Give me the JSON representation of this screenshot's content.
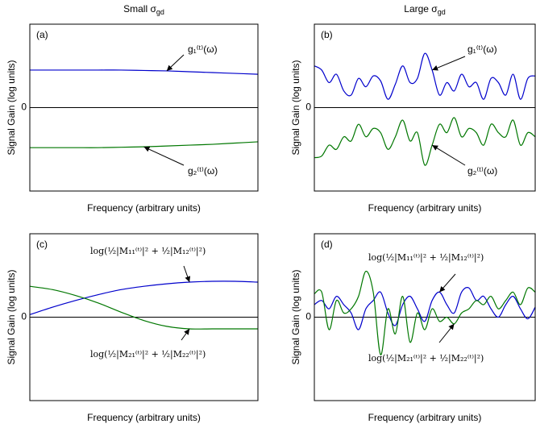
{
  "chart_data": [
    {
      "type": "line",
      "title": "Small σ",
      "title_subscript": "gd",
      "panel": "(a)",
      "xlabel": "Frequency (arbitrary units)",
      "ylabel": "Signal Gain (log units)",
      "x": [
        0,
        1,
        2,
        3,
        4,
        5,
        6,
        7,
        8,
        9,
        10
      ],
      "xlim": [
        0,
        10
      ],
      "ylim": [
        -1,
        1
      ],
      "yticks": [
        0
      ],
      "series": [
        {
          "name": "g₁⁽ᵗ⁾(ω)",
          "color": "#0000cc",
          "values": [
            0.45,
            0.45,
            0.45,
            0.45,
            0.45,
            0.445,
            0.44,
            0.43,
            0.42,
            0.41,
            0.4
          ]
        },
        {
          "name": "g₂⁽ᵗ⁾(ω)",
          "color": "#007700",
          "values": [
            -0.48,
            -0.48,
            -0.48,
            -0.48,
            -0.475,
            -0.47,
            -0.46,
            -0.45,
            -0.44,
            -0.425,
            -0.41
          ]
        }
      ]
    },
    {
      "type": "line",
      "title": "Large σ",
      "title_subscript": "gd",
      "panel": "(b)",
      "xlabel": "Frequency (arbitrary units)",
      "ylabel": "Signal Gain (log units)",
      "x": [
        0,
        1,
        2,
        3,
        4,
        5,
        6,
        7,
        8,
        9,
        10,
        11,
        12,
        13,
        14,
        15,
        16,
        17,
        18,
        19,
        20,
        21,
        22,
        23,
        24,
        25,
        26,
        27,
        28,
        29,
        30
      ],
      "xlim": [
        0,
        30
      ],
      "ylim": [
        -1,
        1
      ],
      "yticks": [
        0
      ],
      "series": [
        {
          "name": "g₁⁽ᵗ⁾(ω)",
          "color": "#0000cc",
          "values": [
            0.5,
            0.45,
            0.3,
            0.4,
            0.2,
            0.15,
            0.35,
            0.25,
            0.38,
            0.32,
            0.1,
            0.28,
            0.5,
            0.3,
            0.35,
            0.65,
            0.45,
            0.15,
            0.3,
            0.2,
            0.4,
            0.25,
            0.3,
            0.1,
            0.35,
            0.3,
            0.15,
            0.4,
            0.1,
            0.35,
            0.38
          ]
        },
        {
          "name": "g₂⁽ᵗ⁾(ω)",
          "color": "#007700",
          "values": [
            -0.6,
            -0.58,
            -0.45,
            -0.5,
            -0.35,
            -0.4,
            -0.2,
            -0.35,
            -0.25,
            -0.3,
            -0.5,
            -0.35,
            -0.15,
            -0.4,
            -0.3,
            -0.69,
            -0.45,
            -0.2,
            -0.3,
            -0.12,
            -0.35,
            -0.25,
            -0.3,
            -0.45,
            -0.2,
            -0.3,
            -0.35,
            -0.15,
            -0.45,
            -0.3,
            -0.35
          ]
        }
      ]
    },
    {
      "type": "line",
      "panel": "(c)",
      "xlabel": "Frequency (arbitrary units)",
      "ylabel": "Signal Gain (log units)",
      "x": [
        0,
        1,
        2,
        3,
        4,
        5,
        6,
        7,
        8,
        9,
        10
      ],
      "xlim": [
        0,
        10
      ],
      "ylim": [
        -1,
        1
      ],
      "yticks": [
        0
      ],
      "series": [
        {
          "name": "log(½|M₁₁⁽ᵗ⁾|² + ½|M₁₂⁽ᵗ⁾|²)",
          "color": "#0000cc",
          "values": [
            0.03,
            0.12,
            0.2,
            0.27,
            0.33,
            0.37,
            0.4,
            0.42,
            0.43,
            0.43,
            0.42
          ]
        },
        {
          "name": "log(½|M₂₁⁽ᵗ⁾|² + ½|M₂₂⁽ᵗ⁾|²)",
          "color": "#007700",
          "values": [
            0.37,
            0.33,
            0.26,
            0.17,
            0.06,
            -0.04,
            -0.11,
            -0.14,
            -0.14,
            -0.14,
            -0.14
          ]
        }
      ]
    },
    {
      "type": "line",
      "panel": "(d)",
      "xlabel": "Frequency (arbitrary units)",
      "ylabel": "Signal Gain (log units)",
      "x": [
        0,
        1,
        2,
        3,
        4,
        5,
        6,
        7,
        8,
        9,
        10,
        11,
        12,
        13,
        14,
        15,
        16,
        17,
        18,
        19,
        20,
        21,
        22,
        23,
        24,
        25,
        26,
        27,
        28,
        29,
        30
      ],
      "xlim": [
        0,
        30
      ],
      "ylim": [
        -1,
        1
      ],
      "yticks": [
        0
      ],
      "series": [
        {
          "name": "log(½|M₁₁⁽ᵗ⁾|² + ½|M₁₂⁽ᵗ⁾|²)",
          "color": "#0000cc",
          "values": [
            0.15,
            0.2,
            0.1,
            0.25,
            0.15,
            0.05,
            -0.15,
            0.1,
            0.2,
            0.3,
            0.05,
            -0.1,
            0.15,
            0.25,
            0.1,
            -0.05,
            0.2,
            0.3,
            0.15,
            0.05,
            0.3,
            0.35,
            0.2,
            0.25,
            0.1,
            0.0,
            0.15,
            0.25,
            0.1,
            -0.02,
            0.12
          ]
        },
        {
          "name": "log(½|M₂₁⁽ᵗ⁾|² + ½|M₂₂⁽ᵗ⁾|²)",
          "color": "#007700",
          "values": [
            0.28,
            0.3,
            -0.15,
            0.2,
            0.05,
            0.1,
            0.25,
            0.55,
            0.3,
            -0.45,
            0.1,
            -0.2,
            0.25,
            -0.3,
            0.05,
            -0.15,
            0.1,
            -0.05,
            0.0,
            -0.08,
            0.05,
            0.1,
            0.2,
            0.15,
            0.25,
            0.1,
            0.2,
            0.3,
            0.15,
            0.35,
            0.3
          ]
        }
      ]
    }
  ]
}
